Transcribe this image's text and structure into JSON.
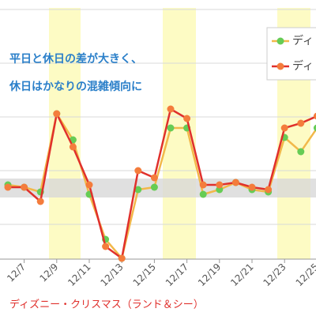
{
  "chart_data": {
    "type": "line",
    "annotations": [
      "平日と休日の差が大きく、",
      "休日はかなりの混雑傾向に"
    ],
    "footer": "ディズニー・クリスマス（ランド＆シー）",
    "categories": [
      null,
      "12/7",
      null,
      "12/9",
      null,
      "12/11",
      null,
      "12/13",
      null,
      "12/15",
      null,
      "12/17",
      null,
      "12/19",
      null,
      "12/21",
      null,
      "12/23",
      null,
      "12/25"
    ],
    "ylim": [
      0,
      110
    ],
    "series": [
      {
        "name": "ディ",
        "color": "#66cc55",
        "line_color": "#f2b84a",
        "values": [
          32,
          31,
          29,
          62,
          51,
          28,
          9,
          1,
          30,
          31,
          56,
          56,
          28,
          30,
          33,
          30,
          29,
          52,
          46,
          56
        ]
      },
      {
        "name": "ディ",
        "color": "#f47c3c",
        "line_color": "#e0302c",
        "values": [
          31,
          31,
          25,
          62,
          48,
          32,
          6,
          1,
          38,
          35,
          64,
          60,
          32,
          32,
          33,
          31,
          30,
          56,
          58,
          61
        ]
      }
    ]
  }
}
